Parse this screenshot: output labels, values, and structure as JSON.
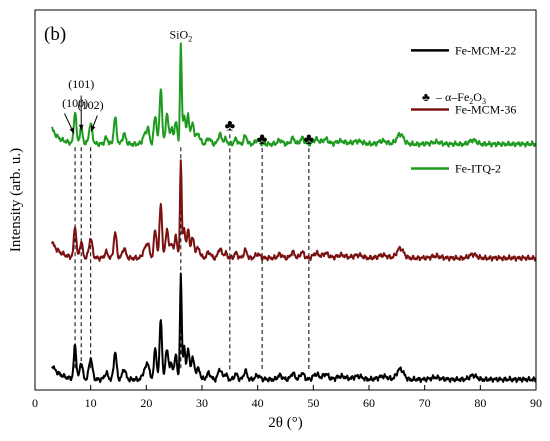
{
  "chart_data": {
    "type": "line",
    "panel_label": "(b)",
    "xlabel": "2θ (°)",
    "ylabel": "Intensity (arb. u.)",
    "xlim": [
      0,
      90
    ],
    "ylim": [
      0,
      3.6
    ],
    "x_ticks": [
      "0",
      "10",
      "20",
      "30",
      "40",
      "50",
      "60",
      "70",
      "80",
      "90"
    ],
    "legend_position": "top-right",
    "legend_label_heights": [
      3.18,
      2.62,
      2.06
    ],
    "marker_legend": {
      "symbol": "♣",
      "text_pre": "– α–Fe",
      "sub1": "2",
      "mid": "O",
      "sub2": "3"
    },
    "annotations": [
      {
        "id": "sio2",
        "text": "SiO",
        "sub": "2",
        "x": 26.2,
        "label_y": 3.33
      },
      {
        "id": "p100",
        "text": "(100)",
        "x": 7.2,
        "label_y": 2.68,
        "arrow_from": [
          5.3,
          2.62
        ],
        "arrow_to": [
          7.0,
          2.43
        ]
      },
      {
        "id": "p101",
        "text": "(101)",
        "x": 8.3,
        "label_y": 2.86,
        "arrow_from": [
          8.3,
          2.79
        ],
        "arrow_to": [
          8.3,
          2.46
        ]
      },
      {
        "id": "p102",
        "text": "(102)",
        "x": 10.0,
        "label_y": 2.66,
        "arrow_from": [
          11.2,
          2.6
        ],
        "arrow_to": [
          10.1,
          2.45
        ]
      }
    ],
    "markers": [
      {
        "x": 35.0,
        "y": 2.46,
        "dash_to": 0.18
      },
      {
        "x": 40.8,
        "y": 2.33,
        "dash_to": 0.18
      },
      {
        "x": 49.2,
        "y": 2.33,
        "dash_to": 0.18
      }
    ],
    "reference_dashes": [
      {
        "x": 7.2,
        "y_top": 2.3,
        "y_bottom": 0.18
      },
      {
        "x": 8.3,
        "y_top": 2.3,
        "y_bottom": 0.18
      },
      {
        "x": 10.0,
        "y_top": 2.3,
        "y_bottom": 0.18
      },
      {
        "x": 26.2,
        "y_top": 2.3,
        "y_bottom": 0.18
      }
    ],
    "peaks": [
      {
        "x": 7.2,
        "h": 0.32,
        "w": 0.22
      },
      {
        "x": 8.3,
        "h": 0.16,
        "w": 0.25
      },
      {
        "x": 10.0,
        "h": 0.2,
        "w": 0.3
      },
      {
        "x": 12.8,
        "h": 0.06,
        "w": 0.3
      },
      {
        "x": 14.4,
        "h": 0.26,
        "w": 0.25
      },
      {
        "x": 16.0,
        "h": 0.1,
        "w": 0.3
      },
      {
        "x": 19.7,
        "h": 0.09,
        "w": 0.35
      },
      {
        "x": 20.3,
        "h": 0.14,
        "w": 0.25
      },
      {
        "x": 21.6,
        "h": 0.28,
        "w": 0.25
      },
      {
        "x": 22.6,
        "h": 0.56,
        "w": 0.22
      },
      {
        "x": 23.7,
        "h": 0.3,
        "w": 0.25
      },
      {
        "x": 24.5,
        "h": 0.16,
        "w": 0.25
      },
      {
        "x": 25.3,
        "h": 0.24,
        "w": 0.22
      },
      {
        "x": 26.2,
        "h": 1.0,
        "w": 0.15
      },
      {
        "x": 26.8,
        "h": 0.3,
        "w": 0.22
      },
      {
        "x": 27.5,
        "h": 0.28,
        "w": 0.22
      },
      {
        "x": 28.3,
        "h": 0.2,
        "w": 0.3
      },
      {
        "x": 29.3,
        "h": 0.1,
        "w": 0.35
      },
      {
        "x": 31.2,
        "h": 0.06,
        "w": 0.35
      },
      {
        "x": 33.2,
        "h": 0.1,
        "w": 0.3
      },
      {
        "x": 34.2,
        "h": 0.05,
        "w": 0.3
      },
      {
        "x": 36.1,
        "h": 0.05,
        "w": 0.3
      },
      {
        "x": 37.8,
        "h": 0.08,
        "w": 0.3
      },
      {
        "x": 40.0,
        "h": 0.04,
        "w": 0.4
      },
      {
        "x": 44.0,
        "h": 0.04,
        "w": 0.4
      },
      {
        "x": 46.3,
        "h": 0.06,
        "w": 0.35
      },
      {
        "x": 48.0,
        "h": 0.06,
        "w": 0.35
      },
      {
        "x": 50.5,
        "h": 0.05,
        "w": 0.5
      },
      {
        "x": 52.2,
        "h": 0.05,
        "w": 0.5
      },
      {
        "x": 55.0,
        "h": 0.03,
        "w": 0.8
      },
      {
        "x": 58.0,
        "h": 0.03,
        "w": 0.8
      },
      {
        "x": 62.5,
        "h": 0.03,
        "w": 0.8
      },
      {
        "x": 65.6,
        "h": 0.1,
        "w": 0.6
      },
      {
        "x": 72.0,
        "h": 0.02,
        "w": 0.8
      },
      {
        "x": 78.7,
        "h": 0.04,
        "w": 0.6
      }
    ],
    "series": [
      {
        "name": "Fe-MCM-22",
        "color": "#000000",
        "baseline": 0.1,
        "scale": 1.0,
        "low_angle_rise": 0.14
      },
      {
        "name": "Fe-MCM-36",
        "color": "#7b1212",
        "baseline": 1.25,
        "scale": 0.93,
        "low_angle_rise": 0.16
      },
      {
        "name": "Fe-ITQ-2",
        "color": "#1e9a1e",
        "baseline": 2.33,
        "scale": 0.95,
        "low_angle_rise": 0.15
      }
    ]
  }
}
